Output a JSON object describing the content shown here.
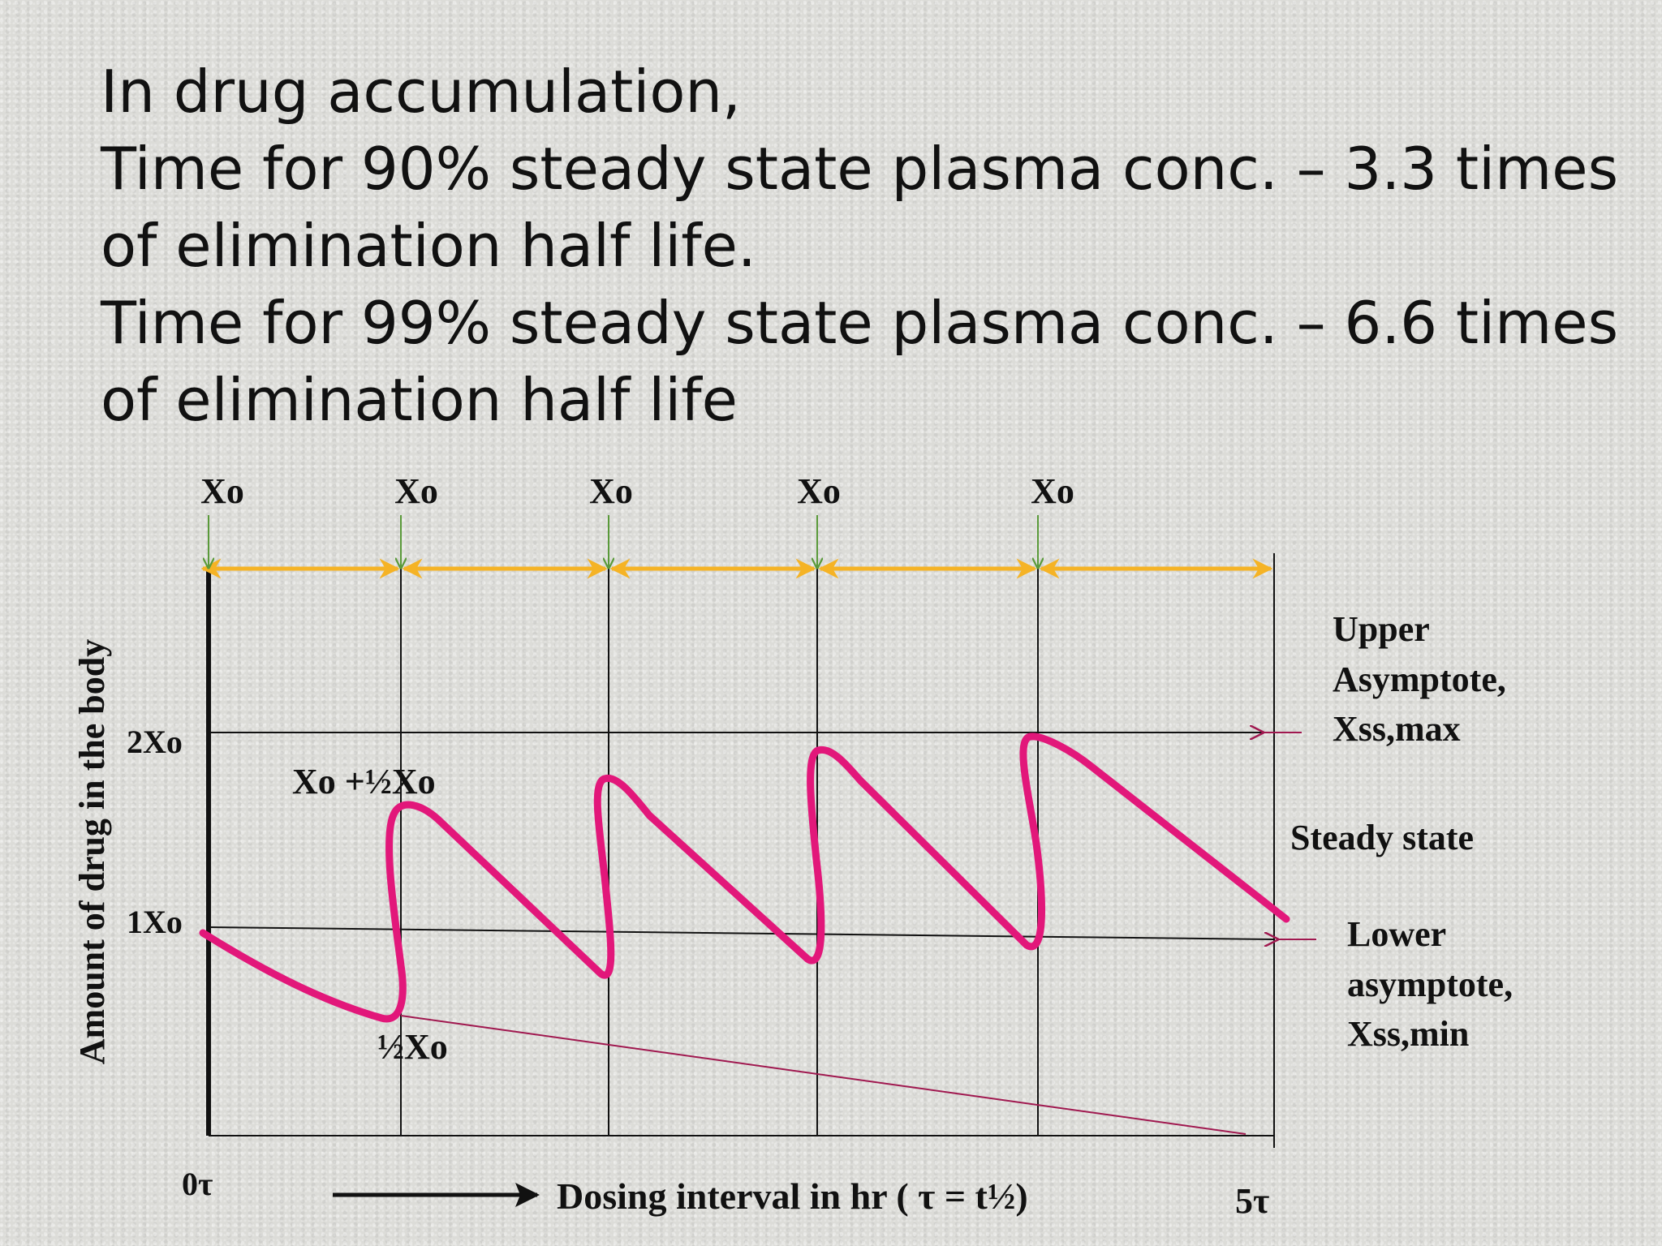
{
  "heading": {
    "line1": "In drug accumulation,",
    "line2": "Time for 90% steady state plasma conc. – 3.3 times",
    "line3": "of elimination half life.",
    "line4": "Time for 99% steady state plasma conc. – 6.6 times",
    "line5": "of elimination half life"
  },
  "diagram": {
    "dose_labels": [
      "Xo",
      "Xo",
      "Xo",
      "Xo",
      "Xo"
    ],
    "y_axis_label": "Amount of drug in the body",
    "y_tick_2xo": "2Xo",
    "y_tick_1xo": "1Xo",
    "peak_label": "Xo +½Xo",
    "trough_label": "½Xo",
    "x_start_label": "0τ",
    "x_end_label": "5τ",
    "x_axis_label": "Dosing interval in hr ( τ = t½)",
    "upper_label": [
      "Upper",
      "Asymptote,",
      "Xss,max"
    ],
    "steady_label": "Steady state",
    "lower_label": [
      "Lower",
      "asymptote,",
      "Xss,min"
    ],
    "colors": {
      "curve": "#e2177a",
      "decay_line": "#a0184f",
      "interval_arrow": "#f5b325",
      "dose_arrow": "#5a9a3a",
      "asymptote_arrow": "#a0184f",
      "grid": "#111111"
    }
  }
}
